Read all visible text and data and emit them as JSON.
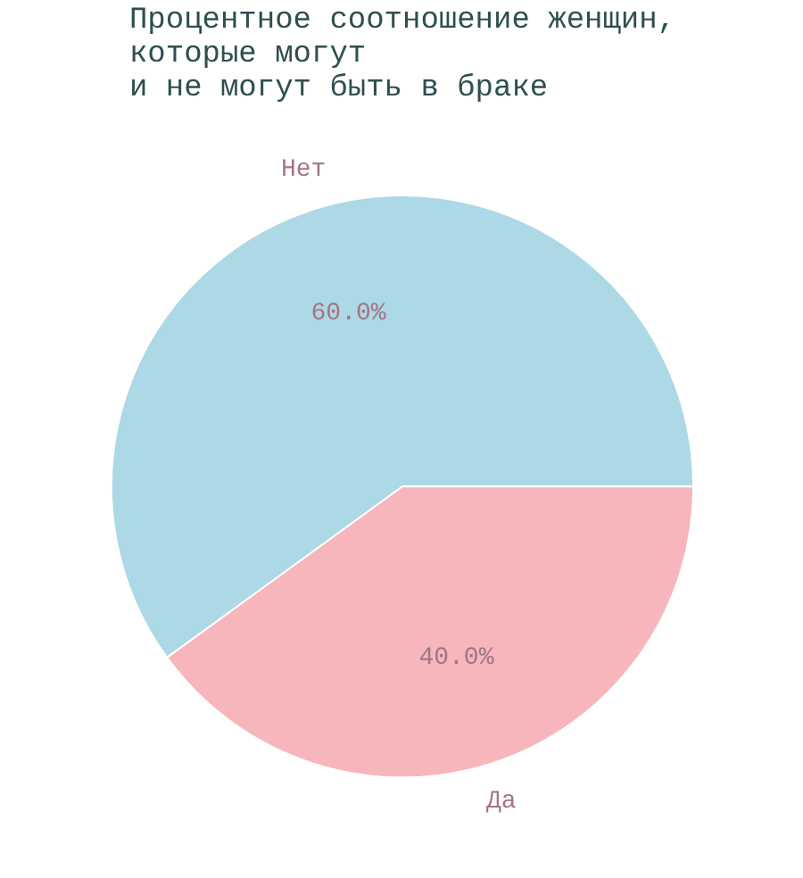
{
  "chart_data": {
    "type": "pie",
    "title": "Процентное соотношение женщин,\nкоторые могут\nи не могут быть в браке",
    "categories": [
      "Нет",
      "Да"
    ],
    "values": [
      60.0,
      40.0
    ],
    "colors": [
      "#add8e6",
      "#f7b6bb"
    ],
    "value_labels": [
      "60.0%",
      "40.0%"
    ]
  }
}
